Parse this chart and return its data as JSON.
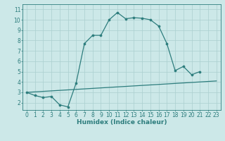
{
  "title": "",
  "xlabel": "Humidex (Indice chaleur)",
  "line1_x": [
    0,
    1,
    2,
    3,
    4,
    5,
    6,
    7,
    8,
    9,
    10,
    11,
    12,
    13,
    14,
    15,
    16,
    17,
    18,
    19,
    20,
    21
  ],
  "line1_y": [
    3.0,
    2.7,
    2.5,
    2.6,
    1.8,
    1.6,
    3.9,
    7.7,
    8.5,
    8.5,
    10.0,
    10.7,
    10.1,
    10.2,
    10.15,
    10.0,
    9.4,
    7.7,
    5.1,
    5.5,
    4.7,
    5.0
  ],
  "straight_line_x": [
    0,
    23
  ],
  "straight_line_y": [
    3.0,
    4.1
  ],
  "line_color": "#2d7d7d",
  "bg_color": "#cce8e8",
  "grid_color": "#aacfcf",
  "xlim": [
    -0.5,
    23.5
  ],
  "ylim": [
    1.3,
    11.5
  ],
  "yticks": [
    2,
    3,
    4,
    5,
    6,
    7,
    8,
    9,
    10,
    11
  ],
  "xticks": [
    0,
    1,
    2,
    3,
    4,
    5,
    6,
    7,
    8,
    9,
    10,
    11,
    12,
    13,
    14,
    15,
    16,
    17,
    18,
    19,
    20,
    21,
    22,
    23
  ]
}
